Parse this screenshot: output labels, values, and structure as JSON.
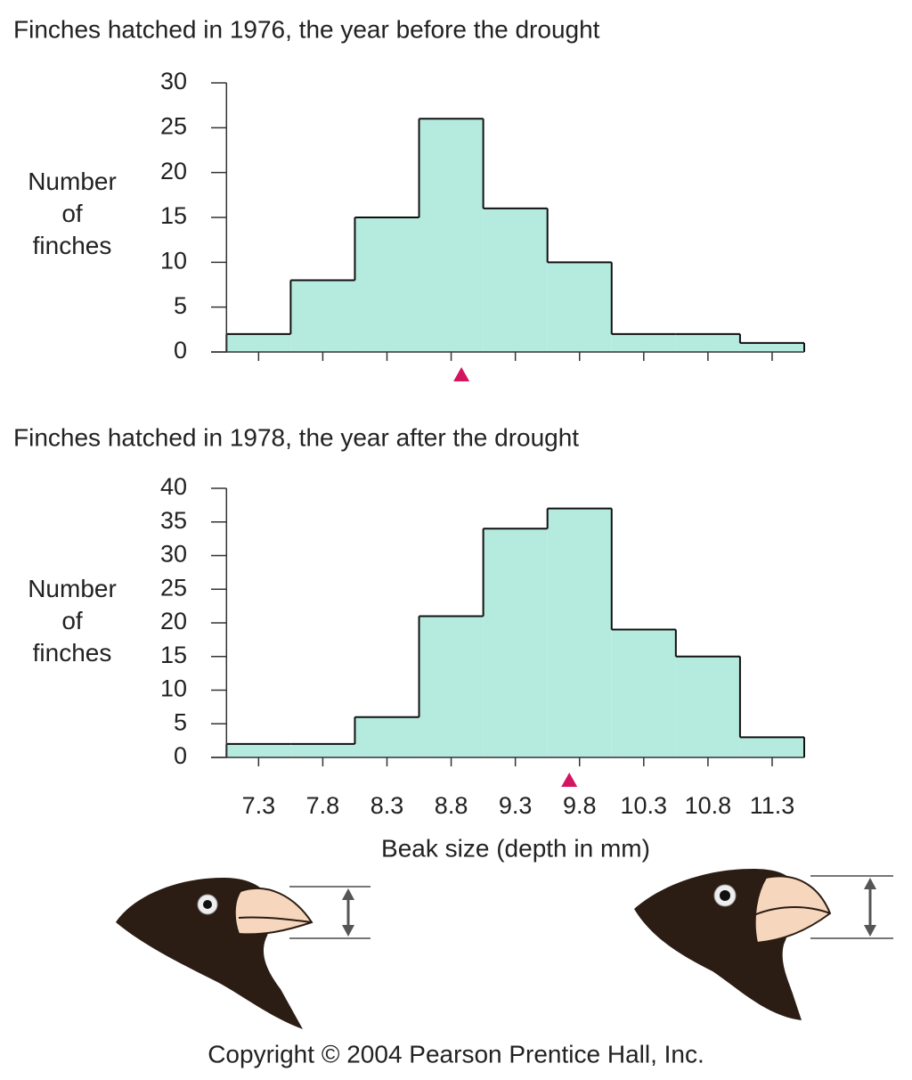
{
  "chart_data": [
    {
      "type": "histogram",
      "title": "Finches hatched in 1976, the year before the drought",
      "ylabel": "Number of finches",
      "bins": [
        7.05,
        7.55,
        8.05,
        8.55,
        9.05,
        9.55,
        10.05,
        10.55,
        11.05,
        11.55
      ],
      "values": [
        2,
        8,
        15,
        26,
        16,
        10,
        2,
        2,
        1
      ],
      "color": "#b5eadf",
      "xlim": [
        6.93,
        11.55
      ],
      "xticks": [
        7.3,
        7.8,
        8.3,
        8.8,
        9.3,
        9.8,
        10.3,
        10.8,
        11.3
      ],
      "xtick_labels": false,
      "ylim": [
        0,
        30
      ],
      "yticks": [
        0,
        5,
        10,
        15,
        20,
        25,
        30
      ],
      "mean_marker": 8.88,
      "marker_color": "#d4145f"
    },
    {
      "type": "histogram",
      "title": "Finches hatched in 1978, the year after the drought",
      "ylabel": "Number of finches",
      "xlabel": "Beak size (depth in mm)",
      "bins": [
        7.05,
        7.55,
        8.05,
        8.55,
        9.05,
        9.55,
        10.05,
        10.55,
        11.05,
        11.55
      ],
      "values": [
        2,
        2,
        6,
        21,
        34,
        37,
        19,
        15,
        3
      ],
      "color": "#b5eadf",
      "xlim": [
        6.93,
        11.55
      ],
      "xticks": [
        7.3,
        7.8,
        8.3,
        8.8,
        9.3,
        9.8,
        10.3,
        10.8,
        11.3
      ],
      "xtick_labels": true,
      "ylim": [
        0,
        40
      ],
      "yticks": [
        0,
        5,
        10,
        15,
        20,
        25,
        30,
        35,
        40
      ],
      "mean_marker": 9.72,
      "marker_color": "#d4145f"
    }
  ],
  "footer": "Copyright © 2004 Pearson Prentice Hall, Inc."
}
